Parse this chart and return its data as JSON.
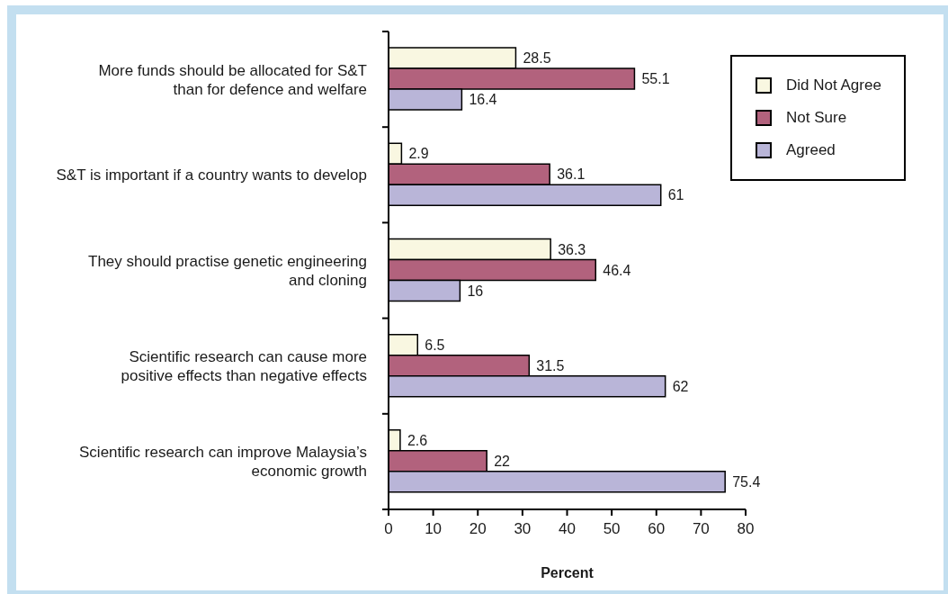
{
  "chart_data": {
    "type": "bar",
    "orientation": "horizontal",
    "categories": [
      "More funds should be allocated for S&T\nthan for defence and welfare",
      "S&T is important if a country wants to develop",
      "They should practise genetic engineering\nand cloning",
      "Scientific research can cause more\npositive effects than negative effects",
      "Scientific research can improve Malaysia’s\neconomic growth"
    ],
    "series": [
      {
        "name": "Did Not Agree",
        "color": "#f9f7e1",
        "values": [
          28.5,
          2.9,
          36.3,
          6.5,
          2.6
        ]
      },
      {
        "name": "Not Sure",
        "color": "#b2627d",
        "values": [
          55.1,
          36.1,
          46.4,
          31.5,
          22
        ]
      },
      {
        "name": "Agreed",
        "color": "#b9b5d8",
        "values": [
          16.4,
          61,
          16,
          62,
          75.4
        ]
      }
    ],
    "xlabel": "Percent",
    "xlim": [
      0,
      80
    ],
    "xticks": [
      0,
      10,
      20,
      30,
      40,
      50,
      60,
      70,
      80
    ],
    "data_labels": true,
    "legend": "top right"
  }
}
